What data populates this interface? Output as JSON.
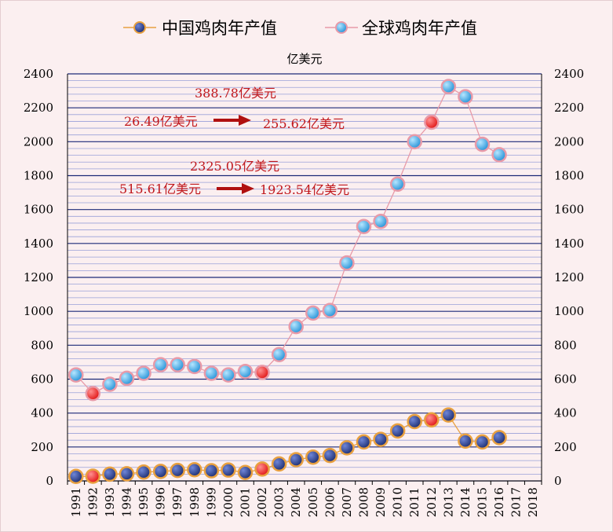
{
  "chart_data": {
    "type": "line",
    "unit": "亿美元",
    "x": [
      "1991",
      "1992",
      "1993",
      "1994",
      "1995",
      "1996",
      "1997",
      "1998",
      "1999",
      "2000",
      "2001",
      "2002",
      "2003",
      "2004",
      "2005",
      "2006",
      "2007",
      "2008",
      "2009",
      "2010",
      "2011",
      "2012",
      "2013",
      "2014",
      "2015",
      "2016",
      "2017",
      "2018"
    ],
    "ylim": [
      0,
      2400
    ],
    "yticks": [
      "0",
      "200",
      "400",
      "600",
      "800",
      "1000",
      "1200",
      "1400",
      "1600",
      "1800",
      "2000",
      "2200",
      "2400"
    ],
    "grid": true,
    "legend_position": "top",
    "series": [
      {
        "name": "中国鸡肉年产值",
        "marker_color": "#1a2a6c",
        "border_color": "#e8a040",
        "values": [
          26.49,
          28,
          40,
          42,
          52,
          56,
          62,
          66,
          60,
          64,
          50,
          70,
          100,
          125,
          140,
          150,
          195,
          230,
          245,
          295,
          350,
          360,
          388.78,
          235,
          230,
          255.62,
          null,
          null
        ],
        "highlight_indices": [
          1,
          11,
          21
        ]
      },
      {
        "name": "全球鸡肉年产值",
        "marker_color": "#1f8fd6",
        "border_color": "#e89aa8",
        "values": [
          625,
          515.61,
          570,
          605,
          635,
          685,
          685,
          675,
          635,
          625,
          645,
          640,
          745,
          910,
          990,
          1005,
          1285,
          1500,
          1530,
          1750,
          2000,
          2115,
          2325.05,
          2265,
          1985,
          1923.54,
          null,
          null
        ],
        "highlight_indices": [
          1,
          11,
          21
        ]
      }
    ],
    "annotations": [
      "388.78亿美元",
      "26.49亿美元",
      "255.62亿美元",
      "2325.05亿美元",
      "515.61亿美元",
      "1923.54亿美元"
    ],
    "highlight_color": "#e01010"
  }
}
